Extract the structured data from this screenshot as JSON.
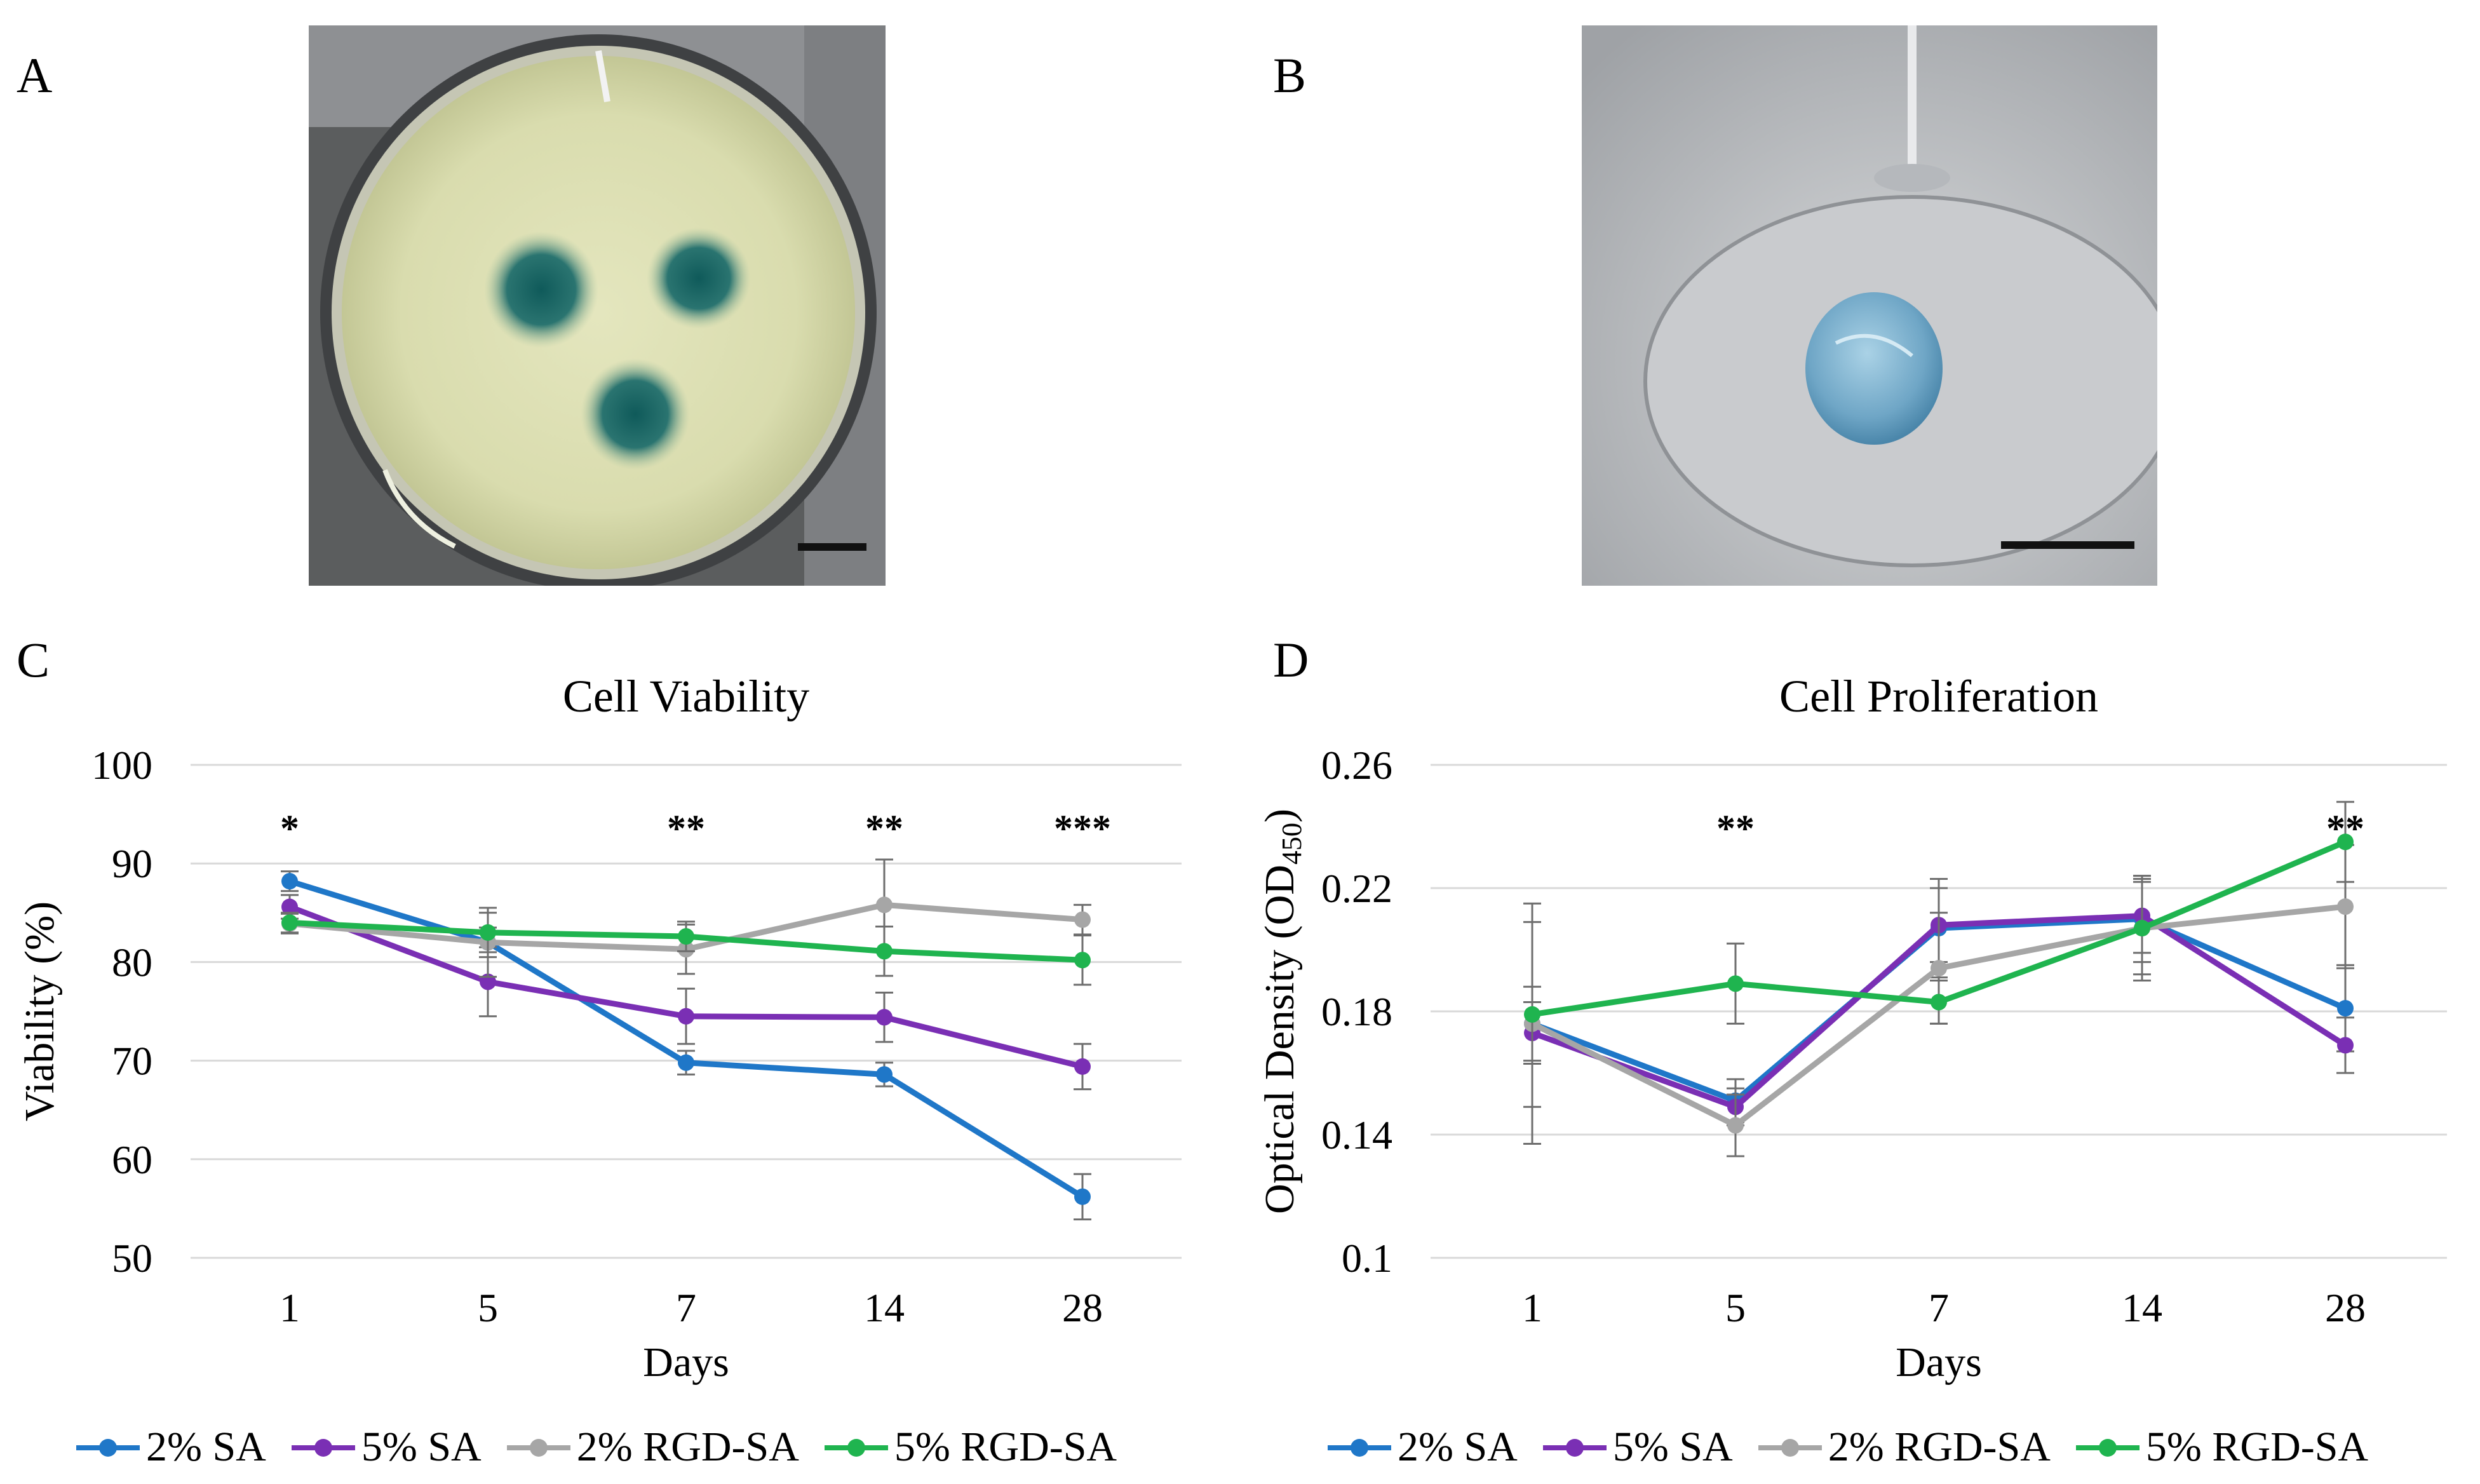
{
  "panels": {
    "a": {
      "label": "A"
    },
    "b": {
      "label": "B"
    },
    "c": {
      "label": "C"
    },
    "d": {
      "label": "D"
    }
  },
  "colors": {
    "series_2sa": "#1f77c8",
    "series_5sa": "#7a2fb4",
    "series_2rgd": "#a6a6a6",
    "series_5rgd": "#1fb44f",
    "grid": "#d9d9d9",
    "error_bar": "#6e6e6e"
  },
  "legend": [
    "2% SA",
    "5% SA",
    "2% RGD-SA",
    "5% RGD-SA"
  ],
  "chart_data": [
    {
      "id": "viability",
      "type": "line",
      "title": "Cell Viability",
      "xlabel": "Days",
      "ylabel": "Viability (%)",
      "categories": [
        "1",
        "5",
        "7",
        "14",
        "28"
      ],
      "ylim": [
        50,
        100
      ],
      "yticks": [
        "50",
        "60",
        "70",
        "80",
        "90",
        "100"
      ],
      "grid": true,
      "significance": [
        "*",
        "",
        "**",
        "**",
        "***"
      ],
      "series": [
        {
          "name": "2% SA",
          "values": [
            88.2,
            82.0,
            69.8,
            68.6,
            56.2
          ],
          "errors": [
            1.0,
            1.5,
            1.2,
            1.2,
            2.3
          ]
        },
        {
          "name": "5% SA",
          "values": [
            85.6,
            78.0,
            74.5,
            74.4,
            69.4
          ],
          "errors": [
            1.2,
            3.5,
            2.8,
            2.5,
            2.3
          ]
        },
        {
          "name": "2% RGD-SA",
          "values": [
            83.9,
            82.0,
            81.3,
            85.8,
            84.3
          ],
          "errors": [
            1.0,
            3.5,
            2.5,
            4.6,
            1.5
          ]
        },
        {
          "name": "5% RGD-SA",
          "values": [
            84.0,
            83.0,
            82.6,
            81.1,
            80.2
          ],
          "errors": [
            1.0,
            2.0,
            1.5,
            2.5,
            2.5
          ]
        }
      ]
    },
    {
      "id": "proliferation",
      "type": "line",
      "title": "Cell Proliferation",
      "xlabel": "Days",
      "ylabel": "Optical Density (OD",
      "ylabel_sub": "450",
      "ylabel_end": ")",
      "categories": [
        "1",
        "5",
        "7",
        "14",
        "28"
      ],
      "ylim": [
        0.1,
        0.26
      ],
      "yticks": [
        "0.1",
        "0.14",
        "0.18",
        "0.22",
        "0.26"
      ],
      "grid": true,
      "significance": [
        "",
        "**",
        "",
        "",
        "**"
      ],
      "series": [
        {
          "name": "2% SA",
          "values": [
            0.176,
            0.151,
            0.207,
            0.21,
            0.181
          ],
          "errors": [
            0.012,
            0.007,
            0.016,
            0.014,
            0.014
          ]
        },
        {
          "name": "5% SA",
          "values": [
            0.173,
            0.149,
            0.208,
            0.211,
            0.169
          ],
          "errors": [
            0.01,
            0.006,
            0.012,
            0.012,
            0.009
          ]
        },
        {
          "name": "2% RGD-SA",
          "values": [
            0.176,
            0.143,
            0.194,
            0.207,
            0.214
          ],
          "errors": [
            0.039,
            0.01,
            0.018,
            0.017,
            0.02
          ]
        },
        {
          "name": "5% RGD-SA",
          "values": [
            0.179,
            0.189,
            0.183,
            0.207,
            0.235
          ],
          "errors": [
            0.03,
            0.013,
            0.007,
            0.015,
            0.013
          ]
        }
      ]
    }
  ]
}
